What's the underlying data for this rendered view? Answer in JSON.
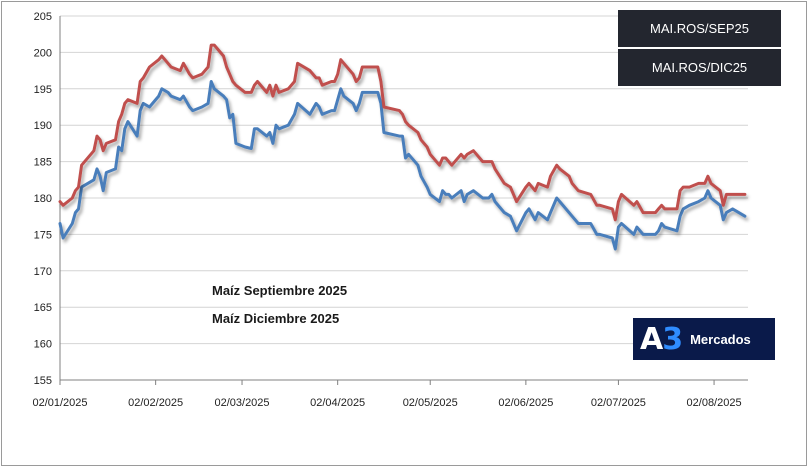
{
  "chart_data": {
    "type": "line",
    "ylim": [
      155,
      205
    ],
    "yticks": [
      155,
      160,
      165,
      170,
      175,
      180,
      185,
      190,
      195,
      200,
      205
    ],
    "xlim": [
      "2025-01-02",
      "2025-08-13"
    ],
    "xticks": [
      {
        "date": "2025-01-02",
        "label": "02/01/2025"
      },
      {
        "date": "2025-02-02",
        "label": "02/02/2025"
      },
      {
        "date": "2025-03-02",
        "label": "02/03/2025"
      },
      {
        "date": "2025-04-02",
        "label": "02/04/2025"
      },
      {
        "date": "2025-05-02",
        "label": "02/05/2025"
      },
      {
        "date": "2025-06-02",
        "label": "02/06/2025"
      },
      {
        "date": "2025-07-02",
        "label": "02/07/2025"
      },
      {
        "date": "2025-08-02",
        "label": "02/08/2025"
      }
    ],
    "grid": "horizontal",
    "legend_placement": "bottom-left",
    "series": [
      {
        "name": "Maíz Septiembre 2025",
        "color": "#4a7ebb",
        "points": [
          [
            "2025-01-02",
            176.5
          ],
          [
            "2025-01-03",
            174.5
          ],
          [
            "2025-01-06",
            176.5
          ],
          [
            "2025-01-07",
            178
          ],
          [
            "2025-01-08",
            178.5
          ],
          [
            "2025-01-09",
            181.5
          ],
          [
            "2025-01-13",
            182.5
          ],
          [
            "2025-01-14",
            184
          ],
          [
            "2025-01-15",
            183
          ],
          [
            "2025-01-16",
            181
          ],
          [
            "2025-01-17",
            183.5
          ],
          [
            "2025-01-20",
            184
          ],
          [
            "2025-01-21",
            187
          ],
          [
            "2025-01-22",
            186.5
          ],
          [
            "2025-01-23",
            189.5
          ],
          [
            "2025-01-24",
            190.5
          ],
          [
            "2025-01-27",
            188.5
          ],
          [
            "2025-01-28",
            192
          ],
          [
            "2025-01-29",
            193
          ],
          [
            "2025-01-31",
            192.5
          ],
          [
            "2025-02-03",
            194
          ],
          [
            "2025-02-04",
            195
          ],
          [
            "2025-02-06",
            194.5
          ],
          [
            "2025-02-07",
            194
          ],
          [
            "2025-02-10",
            193.5
          ],
          [
            "2025-02-11",
            194
          ],
          [
            "2025-02-13",
            192.5
          ],
          [
            "2025-02-14",
            192
          ],
          [
            "2025-02-17",
            192.5
          ],
          [
            "2025-02-19",
            193
          ],
          [
            "2025-02-20",
            196
          ],
          [
            "2025-02-21",
            195
          ],
          [
            "2025-02-24",
            194
          ],
          [
            "2025-02-25",
            193.5
          ],
          [
            "2025-02-26",
            191
          ],
          [
            "2025-02-27",
            191.5
          ],
          [
            "2025-02-28",
            187.5
          ],
          [
            "2025-03-03",
            187
          ],
          [
            "2025-03-05",
            186.8
          ],
          [
            "2025-03-06",
            189.5
          ],
          [
            "2025-03-07",
            189.5
          ],
          [
            "2025-03-10",
            188.5
          ],
          [
            "2025-03-11",
            189
          ],
          [
            "2025-03-12",
            187.5
          ],
          [
            "2025-03-13",
            190
          ],
          [
            "2025-03-14",
            189.5
          ],
          [
            "2025-03-17",
            190
          ],
          [
            "2025-03-19",
            191.5
          ],
          [
            "2025-03-20",
            193
          ],
          [
            "2025-03-24",
            191.5
          ],
          [
            "2025-03-26",
            193
          ],
          [
            "2025-03-27",
            192.5
          ],
          [
            "2025-03-28",
            191.5
          ],
          [
            "2025-03-31",
            192
          ],
          [
            "2025-04-01",
            192
          ],
          [
            "2025-04-02",
            193.5
          ],
          [
            "2025-04-03",
            195
          ],
          [
            "2025-04-04",
            194
          ],
          [
            "2025-04-07",
            193
          ],
          [
            "2025-04-08",
            192
          ],
          [
            "2025-04-09",
            193
          ],
          [
            "2025-04-10",
            194.5
          ],
          [
            "2025-04-14",
            194.5
          ],
          [
            "2025-04-15",
            194.5
          ],
          [
            "2025-04-16",
            193
          ],
          [
            "2025-04-17",
            189
          ],
          [
            "2025-04-22",
            188.5
          ],
          [
            "2025-04-23",
            188.5
          ],
          [
            "2025-04-24",
            185.5
          ],
          [
            "2025-04-25",
            186
          ],
          [
            "2025-04-28",
            184.5
          ],
          [
            "2025-04-29",
            183
          ],
          [
            "2025-05-01",
            181.5
          ],
          [
            "2025-05-02",
            180.5
          ],
          [
            "2025-05-05",
            179.5
          ],
          [
            "2025-05-06",
            181
          ],
          [
            "2025-05-07",
            180.5
          ],
          [
            "2025-05-08",
            180.5
          ],
          [
            "2025-05-09",
            180
          ],
          [
            "2025-05-12",
            181
          ],
          [
            "2025-05-13",
            179.5
          ],
          [
            "2025-05-14",
            180.5
          ],
          [
            "2025-05-16",
            181
          ],
          [
            "2025-05-19",
            180
          ],
          [
            "2025-05-21",
            180
          ],
          [
            "2025-05-22",
            180.5
          ],
          [
            "2025-05-23",
            179.5
          ],
          [
            "2025-05-26",
            178
          ],
          [
            "2025-05-28",
            177.5
          ],
          [
            "2025-05-30",
            175.5
          ],
          [
            "2025-06-02",
            178
          ],
          [
            "2025-06-03",
            178.5
          ],
          [
            "2025-06-05",
            177
          ],
          [
            "2025-06-06",
            178
          ],
          [
            "2025-06-09",
            177
          ],
          [
            "2025-06-10",
            178
          ],
          [
            "2025-06-12",
            180
          ],
          [
            "2025-06-13",
            179.5
          ],
          [
            "2025-06-16",
            178
          ],
          [
            "2025-06-17",
            177.5
          ],
          [
            "2025-06-19",
            176.5
          ],
          [
            "2025-06-23",
            176.5
          ],
          [
            "2025-06-25",
            175
          ],
          [
            "2025-06-26",
            175
          ],
          [
            "2025-06-30",
            174.5
          ],
          [
            "2025-07-01",
            173
          ],
          [
            "2025-07-02",
            176
          ],
          [
            "2025-07-03",
            176.5
          ],
          [
            "2025-07-07",
            175
          ],
          [
            "2025-07-08",
            176
          ],
          [
            "2025-07-10",
            175
          ],
          [
            "2025-07-14",
            175
          ],
          [
            "2025-07-15",
            175.5
          ],
          [
            "2025-07-16",
            176.5
          ],
          [
            "2025-07-17",
            176
          ],
          [
            "2025-07-21",
            175.5
          ],
          [
            "2025-07-22",
            177.5
          ],
          [
            "2025-07-23",
            178.5
          ],
          [
            "2025-07-25",
            179
          ],
          [
            "2025-07-28",
            179.5
          ],
          [
            "2025-07-30",
            180
          ],
          [
            "2025-07-31",
            181
          ],
          [
            "2025-08-01",
            180
          ],
          [
            "2025-08-04",
            179
          ],
          [
            "2025-08-05",
            177
          ],
          [
            "2025-08-06",
            178
          ],
          [
            "2025-08-08",
            178.5
          ],
          [
            "2025-08-12",
            177.5
          ]
        ]
      },
      {
        "name": "Maíz Diciembre 2025",
        "color": "#c0504d",
        "points": [
          [
            "2025-01-02",
            179.5
          ],
          [
            "2025-01-03",
            179
          ],
          [
            "2025-01-06",
            180
          ],
          [
            "2025-01-07",
            181
          ],
          [
            "2025-01-08",
            181.5
          ],
          [
            "2025-01-09",
            184.5
          ],
          [
            "2025-01-13",
            186.5
          ],
          [
            "2025-01-14",
            188.5
          ],
          [
            "2025-01-15",
            188
          ],
          [
            "2025-01-16",
            186.5
          ],
          [
            "2025-01-17",
            187.5
          ],
          [
            "2025-01-20",
            188
          ],
          [
            "2025-01-21",
            190.5
          ],
          [
            "2025-01-22",
            191.5
          ],
          [
            "2025-01-23",
            193
          ],
          [
            "2025-01-24",
            193.5
          ],
          [
            "2025-01-27",
            193
          ],
          [
            "2025-01-28",
            196
          ],
          [
            "2025-01-29",
            196.5
          ],
          [
            "2025-01-31",
            198
          ],
          [
            "2025-02-03",
            199
          ],
          [
            "2025-02-04",
            199.5
          ],
          [
            "2025-02-06",
            198.5
          ],
          [
            "2025-02-07",
            198
          ],
          [
            "2025-02-10",
            197.5
          ],
          [
            "2025-02-11",
            198.5
          ],
          [
            "2025-02-13",
            197
          ],
          [
            "2025-02-14",
            196.5
          ],
          [
            "2025-02-17",
            197
          ],
          [
            "2025-02-19",
            198
          ],
          [
            "2025-02-20",
            201
          ],
          [
            "2025-02-21",
            201
          ],
          [
            "2025-02-24",
            199.5
          ],
          [
            "2025-02-25",
            198
          ],
          [
            "2025-02-26",
            197
          ],
          [
            "2025-02-27",
            196
          ],
          [
            "2025-02-28",
            195.5
          ],
          [
            "2025-03-03",
            194.5
          ],
          [
            "2025-03-05",
            194.5
          ],
          [
            "2025-03-06",
            195.5
          ],
          [
            "2025-03-07",
            196
          ],
          [
            "2025-03-10",
            194.5
          ],
          [
            "2025-03-11",
            195.5
          ],
          [
            "2025-03-12",
            194
          ],
          [
            "2025-03-13",
            195.5
          ],
          [
            "2025-03-14",
            194.5
          ],
          [
            "2025-03-17",
            195
          ],
          [
            "2025-03-19",
            196
          ],
          [
            "2025-03-20",
            198.5
          ],
          [
            "2025-03-24",
            197.5
          ],
          [
            "2025-03-26",
            196.5
          ],
          [
            "2025-03-27",
            196.5
          ],
          [
            "2025-03-28",
            195.5
          ],
          [
            "2025-03-31",
            196
          ],
          [
            "2025-04-01",
            196
          ],
          [
            "2025-04-02",
            197
          ],
          [
            "2025-04-03",
            199
          ],
          [
            "2025-04-04",
            198.5
          ],
          [
            "2025-04-07",
            197
          ],
          [
            "2025-04-08",
            196
          ],
          [
            "2025-04-09",
            196.5
          ],
          [
            "2025-04-10",
            198
          ],
          [
            "2025-04-14",
            198
          ],
          [
            "2025-04-15",
            198
          ],
          [
            "2025-04-16",
            196
          ],
          [
            "2025-04-17",
            192.5
          ],
          [
            "2025-04-22",
            192
          ],
          [
            "2025-04-23",
            191.5
          ],
          [
            "2025-04-24",
            190.5
          ],
          [
            "2025-04-25",
            190
          ],
          [
            "2025-04-28",
            189
          ],
          [
            "2025-04-29",
            188
          ],
          [
            "2025-05-01",
            187
          ],
          [
            "2025-05-02",
            186
          ],
          [
            "2025-05-05",
            184.5
          ],
          [
            "2025-05-06",
            185.5
          ],
          [
            "2025-05-07",
            185.5
          ],
          [
            "2025-05-08",
            185
          ],
          [
            "2025-05-09",
            184.5
          ],
          [
            "2025-05-12",
            186
          ],
          [
            "2025-05-13",
            185.5
          ],
          [
            "2025-05-14",
            186
          ],
          [
            "2025-05-16",
            186.5
          ],
          [
            "2025-05-19",
            185
          ],
          [
            "2025-05-21",
            185
          ],
          [
            "2025-05-22",
            185
          ],
          [
            "2025-05-23",
            184
          ],
          [
            "2025-05-26",
            182
          ],
          [
            "2025-05-28",
            181.5
          ],
          [
            "2025-05-30",
            179.5
          ],
          [
            "2025-06-02",
            181.5
          ],
          [
            "2025-06-03",
            182
          ],
          [
            "2025-06-05",
            181
          ],
          [
            "2025-06-06",
            182
          ],
          [
            "2025-06-09",
            181.5
          ],
          [
            "2025-06-10",
            183
          ],
          [
            "2025-06-12",
            184.5
          ],
          [
            "2025-06-13",
            184
          ],
          [
            "2025-06-16",
            183
          ],
          [
            "2025-06-17",
            182
          ],
          [
            "2025-06-19",
            181
          ],
          [
            "2025-06-23",
            180.5
          ],
          [
            "2025-06-25",
            179
          ],
          [
            "2025-06-26",
            179
          ],
          [
            "2025-06-30",
            178.5
          ],
          [
            "2025-07-01",
            177
          ],
          [
            "2025-07-02",
            179.5
          ],
          [
            "2025-07-03",
            180.5
          ],
          [
            "2025-07-07",
            179
          ],
          [
            "2025-07-08",
            179.5
          ],
          [
            "2025-07-10",
            178
          ],
          [
            "2025-07-14",
            178
          ],
          [
            "2025-07-15",
            178.5
          ],
          [
            "2025-07-16",
            179
          ],
          [
            "2025-07-17",
            178.5
          ],
          [
            "2025-07-21",
            178.5
          ],
          [
            "2025-07-22",
            181
          ],
          [
            "2025-07-23",
            181.5
          ],
          [
            "2025-07-25",
            181.5
          ],
          [
            "2025-07-28",
            182
          ],
          [
            "2025-07-30",
            182
          ],
          [
            "2025-07-31",
            183
          ],
          [
            "2025-08-01",
            182
          ],
          [
            "2025-08-04",
            181
          ],
          [
            "2025-08-05",
            179
          ],
          [
            "2025-08-06",
            180.5
          ],
          [
            "2025-08-08",
            180.5
          ],
          [
            "2025-08-12",
            180.5
          ]
        ]
      }
    ]
  },
  "tickers": [
    "MAI.ROS/SEP25",
    "MAI.ROS/DIC25"
  ],
  "logo": {
    "mark_a": "A",
    "mark_3": "3",
    "text": "Mercados"
  },
  "colors": {
    "grid": "#d4d4d4",
    "axis": "#808080",
    "ticker_bg": "#23262f",
    "logo_bg": "#0a1a4a"
  }
}
